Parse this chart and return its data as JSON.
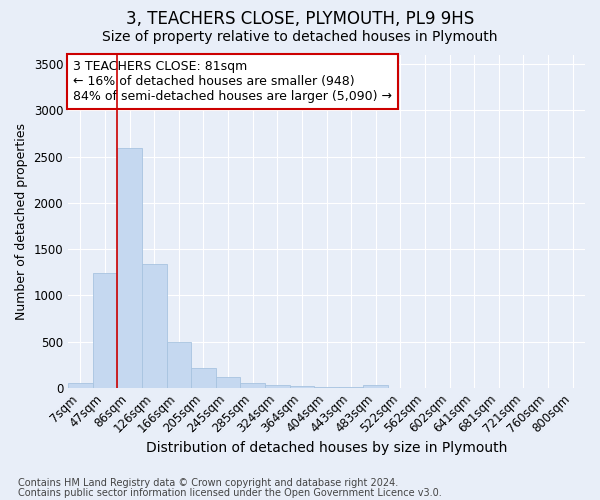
{
  "title": "3, TEACHERS CLOSE, PLYMOUTH, PL9 9HS",
  "subtitle": "Size of property relative to detached houses in Plymouth",
  "xlabel": "Distribution of detached houses by size in Plymouth",
  "ylabel": "Number of detached properties",
  "bins": [
    "7sqm",
    "47sqm",
    "86sqm",
    "126sqm",
    "166sqm",
    "205sqm",
    "245sqm",
    "285sqm",
    "324sqm",
    "364sqm",
    "404sqm",
    "443sqm",
    "483sqm",
    "522sqm",
    "562sqm",
    "602sqm",
    "641sqm",
    "681sqm",
    "721sqm",
    "760sqm",
    "800sqm"
  ],
  "values": [
    50,
    1240,
    2590,
    1340,
    490,
    210,
    115,
    50,
    30,
    20,
    10,
    5,
    25,
    0,
    0,
    0,
    0,
    0,
    0,
    0,
    0
  ],
  "bar_color": "#c5d8f0",
  "bar_edge_color": "#a8c4e0",
  "vline_color": "#cc0000",
  "vline_x_index": 2,
  "annotation_text": "3 TEACHERS CLOSE: 81sqm\n← 16% of detached houses are smaller (948)\n84% of semi-detached houses are larger (5,090) →",
  "annotation_box_color": "#ffffff",
  "annotation_box_edge_color": "#cc0000",
  "ylim": [
    0,
    3600
  ],
  "yticks": [
    0,
    500,
    1000,
    1500,
    2000,
    2500,
    3000,
    3500
  ],
  "bg_color": "#e8eef8",
  "plot_bg_color": "#e8eef8",
  "footer_line1": "Contains HM Land Registry data © Crown copyright and database right 2024.",
  "footer_line2": "Contains public sector information licensed under the Open Government Licence v3.0.",
  "title_fontsize": 12,
  "subtitle_fontsize": 10,
  "xlabel_fontsize": 10,
  "ylabel_fontsize": 9,
  "tick_fontsize": 8.5,
  "annotation_fontsize": 9,
  "footer_fontsize": 7
}
